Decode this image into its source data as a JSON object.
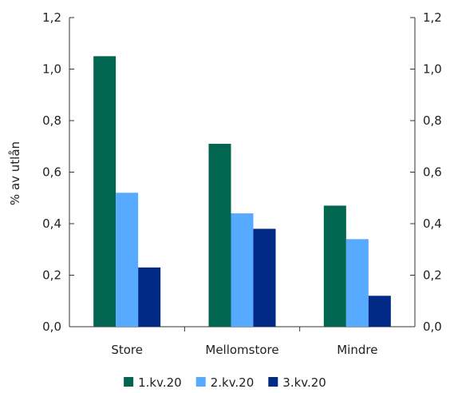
{
  "chart_data": {
    "type": "bar",
    "categories": [
      "Store",
      "Mellomstore",
      "Mindre"
    ],
    "series": [
      {
        "name": "1.kv.20",
        "values": [
          1.05,
          0.71,
          0.47
        ],
        "color": "#00664f"
      },
      {
        "name": "2.kv.20",
        "values": [
          0.52,
          0.44,
          0.34
        ],
        "color": "#56aaff"
      },
      {
        "name": "3.kv.20",
        "values": [
          0.23,
          0.38,
          0.12
        ],
        "color": "#002a85"
      }
    ],
    "ylabel": "% av utlån",
    "ylim": [
      0,
      1.2
    ],
    "yticks": [
      "0,0",
      "0,2",
      "0,4",
      "0,6",
      "0,8",
      "1,0",
      "1,2"
    ],
    "grid": false,
    "legend_position": "bottom",
    "secondary_y_axis": true
  }
}
